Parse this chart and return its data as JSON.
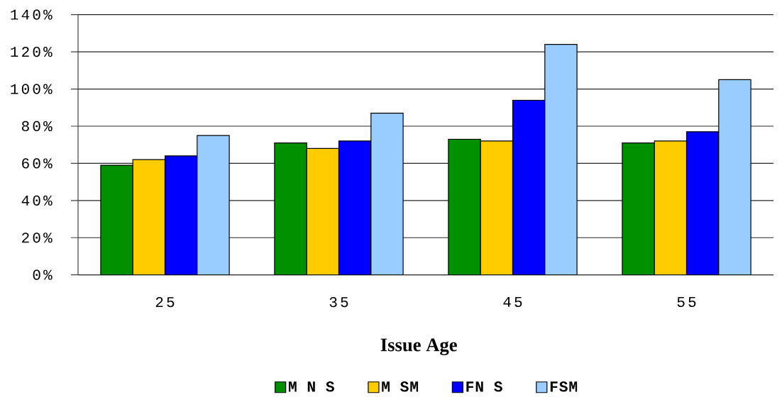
{
  "chart_data": {
    "type": "bar",
    "xlabel": "Issue Age",
    "categories": [
      "25",
      "35",
      "45",
      "55"
    ],
    "series": [
      {
        "name": "M N S",
        "color": "#009000",
        "values": [
          59,
          71,
          73,
          71
        ]
      },
      {
        "name": "M SM",
        "color": "#ffcc00",
        "values": [
          62,
          68,
          72,
          72
        ]
      },
      {
        "name": "FN S",
        "color": "#0000ff",
        "values": [
          64,
          72,
          94,
          77
        ]
      },
      {
        "name": "FSM",
        "color": "#99ccff",
        "values": [
          75,
          87,
          124,
          105
        ]
      }
    ],
    "ylim": [
      0,
      140
    ],
    "yticks": [
      {
        "value": 0,
        "label": "0%"
      },
      {
        "value": 20,
        "label": "20%"
      },
      {
        "value": 40,
        "label": "40%"
      },
      {
        "value": 60,
        "label": "60%"
      },
      {
        "value": 80,
        "label": "80%"
      },
      {
        "value": 100,
        "label": "100%"
      },
      {
        "value": 120,
        "label": "120%"
      },
      {
        "value": 140,
        "label": "140%"
      }
    ],
    "grid": "y",
    "legend": "bottom"
  }
}
